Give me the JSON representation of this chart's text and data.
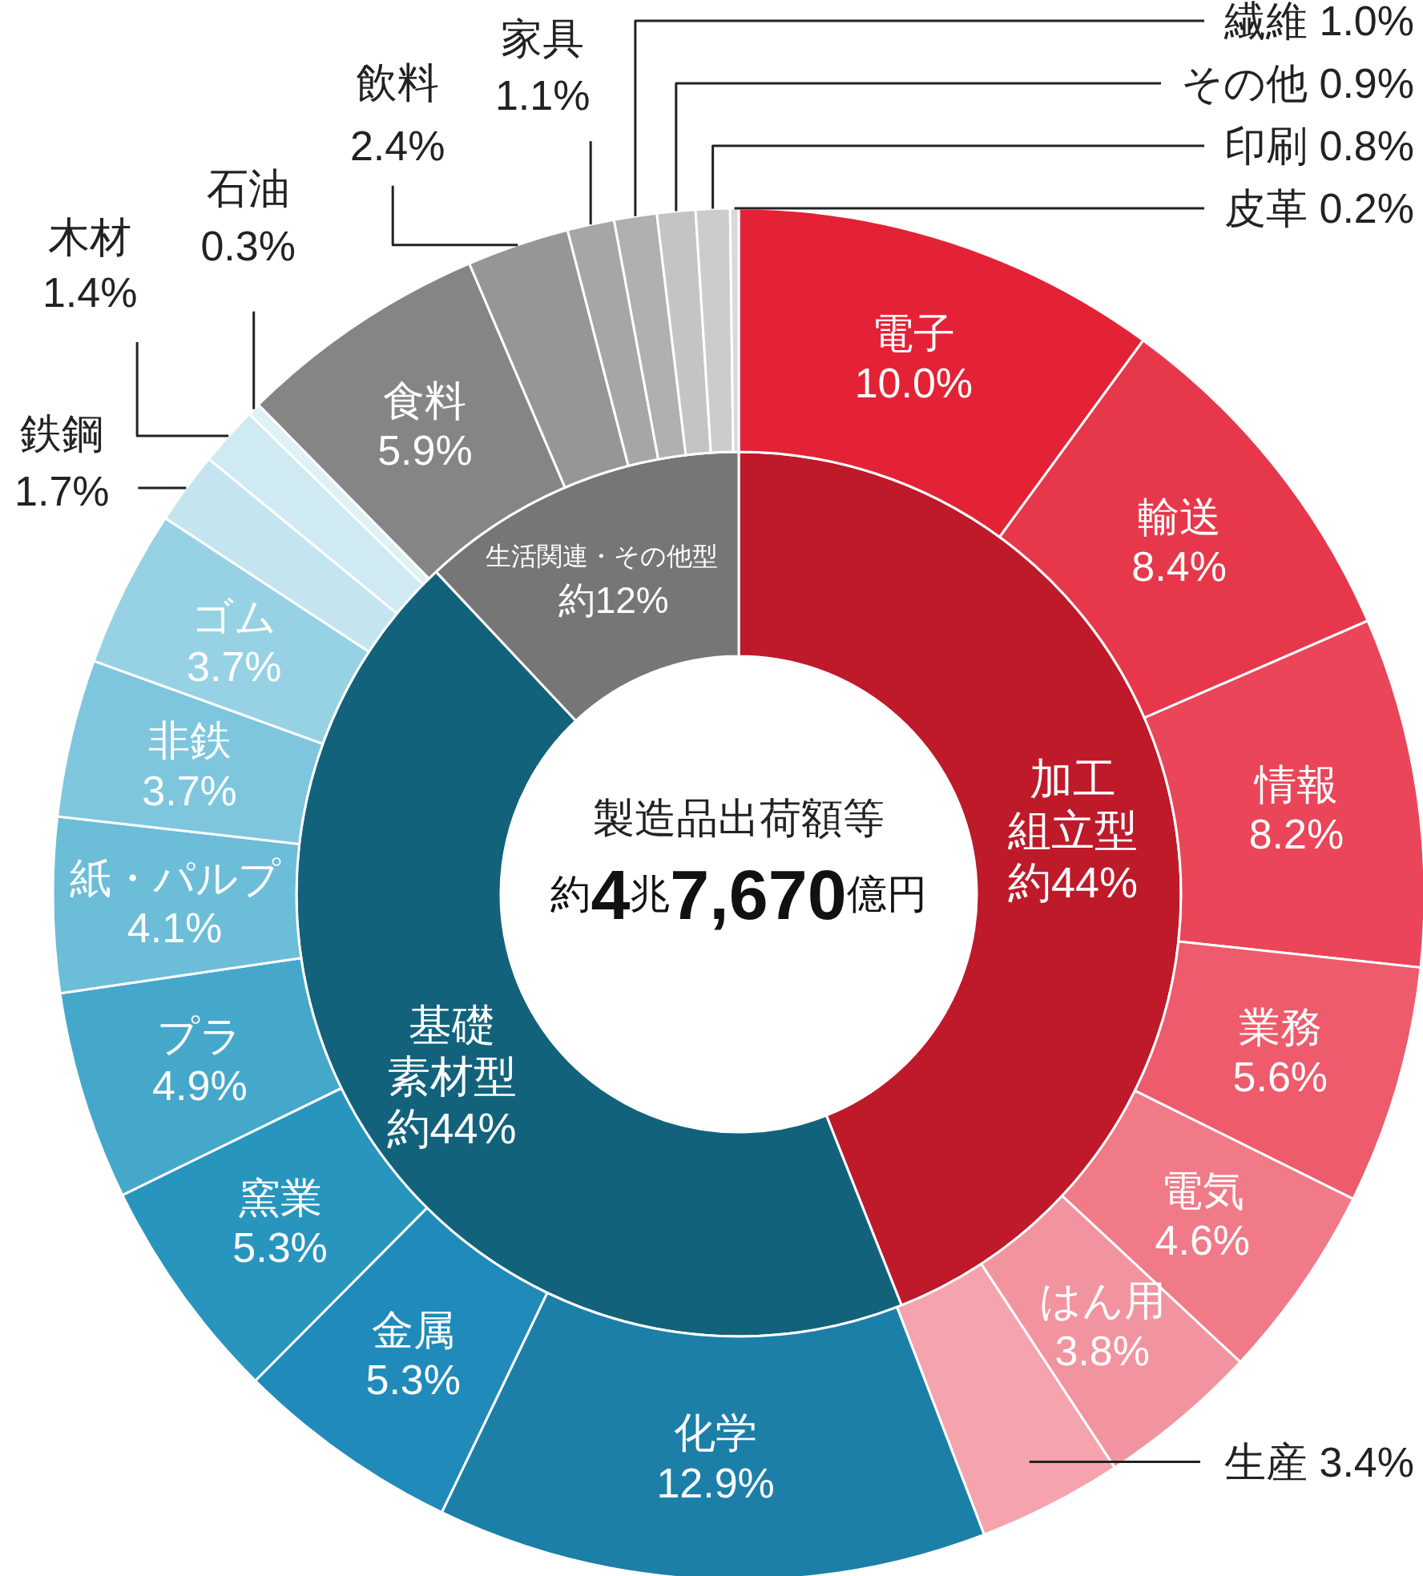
{
  "chart_data": [
    {
      "type": "donut",
      "title": "製造品出荷額等",
      "subtitle": "約4兆7,670億円",
      "categories": [
        "加工組立型",
        "基礎素材型",
        "生活関連・その他型"
      ],
      "values": [
        44,
        44,
        12
      ],
      "value_labels": [
        "約44%",
        "約44%",
        "約12%"
      ],
      "colors": [
        "#be1a2a",
        "#13627c",
        "#767676"
      ]
    },
    {
      "type": "donut",
      "categories": [
        "電子",
        "輸送",
        "情報",
        "業務",
        "電気",
        "はん用",
        "生産",
        "化学",
        "金属",
        "窯業",
        "プラ",
        "紙・パルプ",
        "非鉄",
        "ゴム",
        "鉄鋼",
        "木材",
        "石油",
        "食料",
        "飲料",
        "家具",
        "繊維",
        "その他",
        "印刷",
        "皮革"
      ],
      "values": [
        10.0,
        8.4,
        8.2,
        5.6,
        4.6,
        3.8,
        3.4,
        12.9,
        5.3,
        5.3,
        4.9,
        4.1,
        3.7,
        3.7,
        1.7,
        1.4,
        0.3,
        5.9,
        2.4,
        1.1,
        1.0,
        0.9,
        0.8,
        0.2
      ],
      "value_labels": [
        "10.0%",
        "8.4%",
        "8.2%",
        "5.6%",
        "4.6%",
        "3.8%",
        "3.4%",
        "12.9%",
        "5.3%",
        "5.3%",
        "4.9%",
        "4.1%",
        "3.7%",
        "3.7%",
        "1.7%",
        "1.4%",
        "0.3%",
        "5.9%",
        "2.4%",
        "1.1%",
        "1.0%",
        "0.9%",
        "0.8%",
        "0.2%"
      ],
      "colors": [
        "#e32236",
        "#e7384b",
        "#ea4558",
        "#ed5b6d",
        "#f07a88",
        "#f294a0",
        "#f5a3ad",
        "#1c7fa8",
        "#208bba",
        "#2895be",
        "#45a8cb",
        "#6cbdd8",
        "#7ec6de",
        "#97d2e4",
        "#c4e5ef",
        "#cfeaf2",
        "#e0f1f6",
        "#858585",
        "#969696",
        "#a6a6a6",
        "#b0b0b0",
        "#c4c4c4",
        "#cccccc",
        "#d9d9d9"
      ]
    }
  ]
}
